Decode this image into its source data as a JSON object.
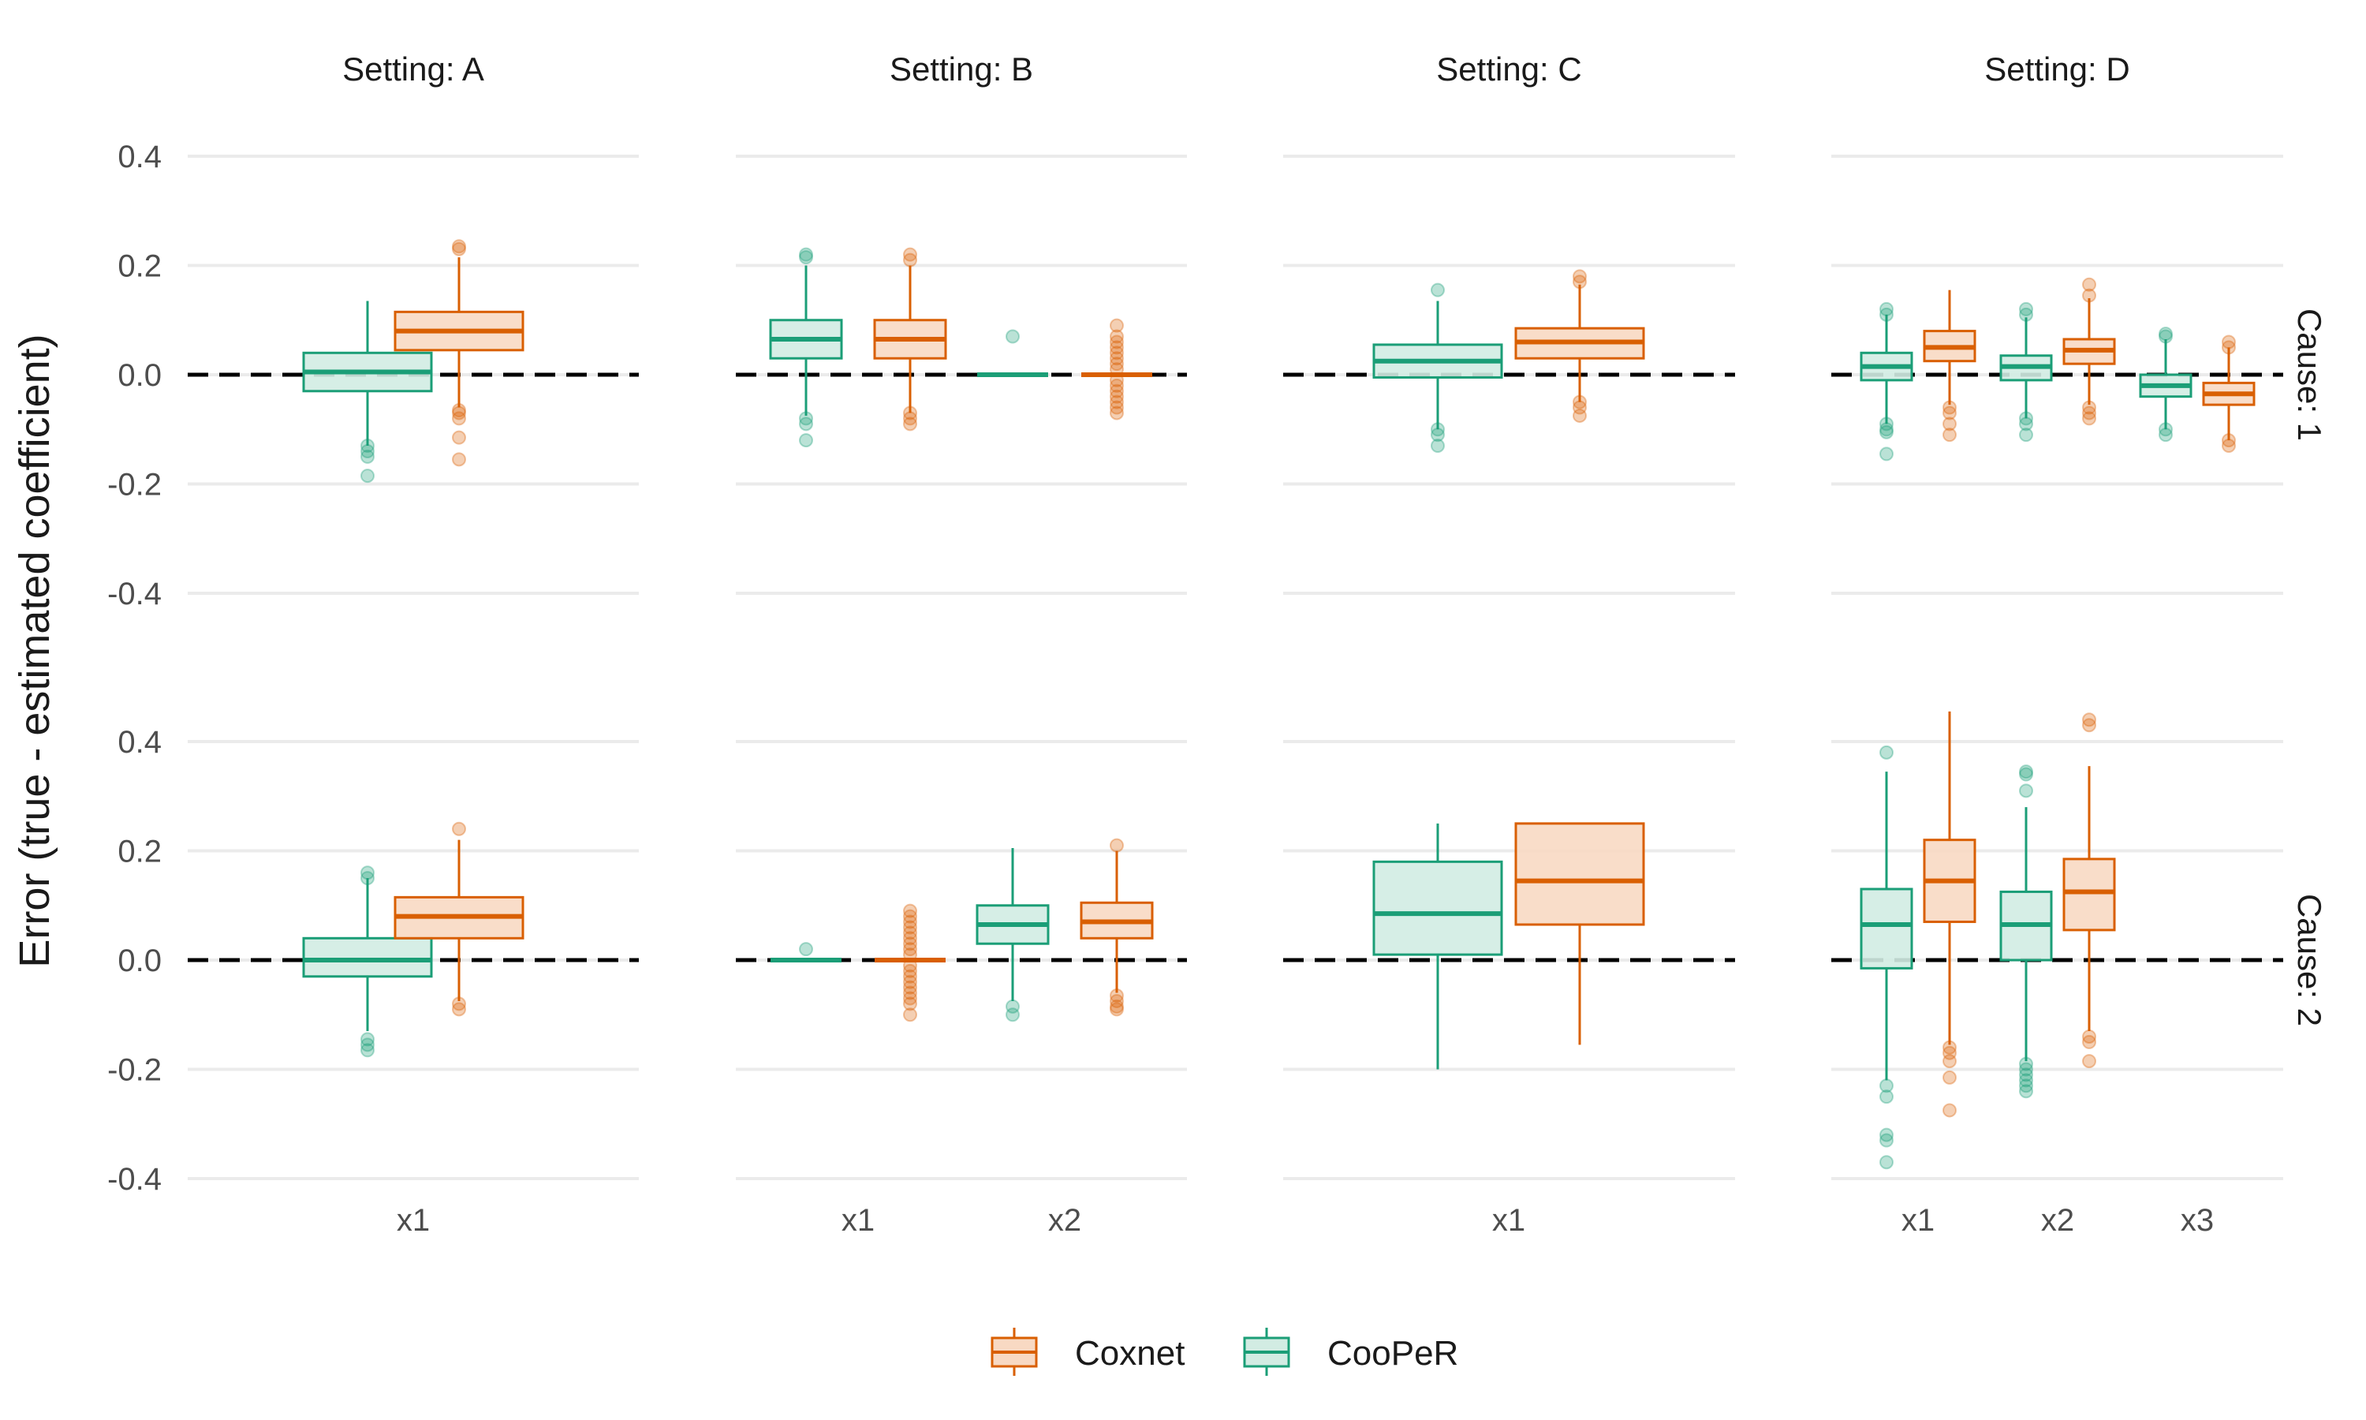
{
  "chart_data": {
    "type": "boxplot",
    "ylabel": "Error (true - estimated coefficient)",
    "ylim": [
      -0.4,
      0.4
    ],
    "yticks": [
      "0.4",
      "0.2",
      "0.0",
      "-0.2",
      "-0.4"
    ],
    "reference_line": 0.0,
    "legend": {
      "position": "bottom",
      "items": [
        {
          "name": "Coxnet",
          "key": "coxnet"
        },
        {
          "name": "CooPeR",
          "key": "cooper"
        }
      ]
    },
    "colors": {
      "cooper_stroke": "#1b9e77",
      "cooper_fill": "#d2ece3",
      "coxnet_stroke": "#d95f02",
      "coxnet_fill": "#f8d9c3",
      "grid": "#ebebeb",
      "refline": "#000000"
    },
    "settings": [
      "Setting: A",
      "Setting: B",
      "Setting: C",
      "Setting: D"
    ],
    "causes": [
      "Cause: 1",
      "Cause: 2"
    ],
    "x_categories": [
      [
        "x1"
      ],
      [
        "x1",
        "x2"
      ],
      [
        "x1"
      ],
      [
        "x1",
        "x2",
        "x3"
      ]
    ],
    "panels": [
      {
        "setting": 0,
        "cause": 0,
        "boxes": [
          {
            "cat": 0,
            "method": "cooper",
            "min": -0.13,
            "q1": -0.03,
            "median": 0.005,
            "q3": 0.04,
            "max": 0.135,
            "outliers": [
              -0.13,
              -0.14,
              -0.15,
              -0.185
            ]
          },
          {
            "cat": 0,
            "method": "coxnet",
            "min": -0.06,
            "q1": 0.045,
            "median": 0.08,
            "q3": 0.115,
            "max": 0.215,
            "outliers": [
              0.235,
              0.23,
              -0.065,
              -0.07,
              -0.08,
              -0.115,
              -0.155
            ]
          }
        ]
      },
      {
        "setting": 1,
        "cause": 0,
        "boxes": [
          {
            "cat": 0,
            "method": "cooper",
            "min": -0.075,
            "q1": 0.03,
            "median": 0.065,
            "q3": 0.1,
            "max": 0.2,
            "outliers": [
              0.22,
              0.215,
              -0.08,
              -0.09,
              -0.12
            ]
          },
          {
            "cat": 0,
            "method": "coxnet",
            "min": -0.07,
            "q1": 0.03,
            "median": 0.065,
            "q3": 0.1,
            "max": 0.2,
            "outliers": [
              0.22,
              0.21,
              -0.07,
              -0.08,
              -0.09
            ]
          },
          {
            "cat": 1,
            "method": "cooper",
            "min": 0.0,
            "q1": 0.0,
            "median": 0.0,
            "q3": 0.0,
            "max": 0.0,
            "outliers": [
              0.07
            ]
          },
          {
            "cat": 1,
            "method": "coxnet",
            "min": 0.0,
            "q1": 0.0,
            "median": 0.0,
            "q3": 0.0,
            "max": 0.0,
            "outliers": [
              0.09,
              0.07,
              0.06,
              0.05,
              0.04,
              0.03,
              0.02,
              0.01,
              -0.01,
              -0.02,
              -0.03,
              -0.04,
              -0.05,
              -0.06,
              -0.07
            ]
          }
        ]
      },
      {
        "setting": 2,
        "cause": 0,
        "boxes": [
          {
            "cat": 0,
            "method": "cooper",
            "min": -0.1,
            "q1": -0.005,
            "median": 0.025,
            "q3": 0.055,
            "max": 0.135,
            "outliers": [
              0.155,
              -0.1,
              -0.11,
              -0.13
            ]
          },
          {
            "cat": 0,
            "method": "coxnet",
            "min": -0.05,
            "q1": 0.03,
            "median": 0.06,
            "q3": 0.085,
            "max": 0.165,
            "outliers": [
              0.18,
              0.17,
              -0.05,
              -0.06,
              -0.075
            ]
          }
        ]
      },
      {
        "setting": 3,
        "cause": 0,
        "boxes": [
          {
            "cat": 0,
            "method": "cooper",
            "min": -0.09,
            "q1": -0.01,
            "median": 0.015,
            "q3": 0.04,
            "max": 0.11,
            "outliers": [
              0.12,
              0.11,
              -0.09,
              -0.1,
              -0.105,
              -0.145
            ]
          },
          {
            "cat": 0,
            "method": "coxnet",
            "min": -0.055,
            "q1": 0.025,
            "median": 0.05,
            "q3": 0.08,
            "max": 0.155,
            "outliers": [
              -0.06,
              -0.07,
              -0.09,
              -0.11
            ]
          },
          {
            "cat": 1,
            "method": "cooper",
            "min": -0.08,
            "q1": -0.01,
            "median": 0.015,
            "q3": 0.035,
            "max": 0.105,
            "outliers": [
              0.12,
              0.11,
              -0.08,
              -0.09,
              -0.11
            ]
          },
          {
            "cat": 1,
            "method": "coxnet",
            "min": -0.055,
            "q1": 0.02,
            "median": 0.045,
            "q3": 0.065,
            "max": 0.14,
            "outliers": [
              0.165,
              0.145,
              -0.06,
              -0.07,
              -0.08
            ]
          },
          {
            "cat": 2,
            "method": "cooper",
            "min": -0.1,
            "q1": -0.04,
            "median": -0.02,
            "q3": 0.0,
            "max": 0.065,
            "outliers": [
              0.075,
              0.07,
              -0.1,
              -0.11
            ]
          },
          {
            "cat": 2,
            "method": "coxnet",
            "min": -0.12,
            "q1": -0.055,
            "median": -0.035,
            "q3": -0.015,
            "max": 0.05,
            "outliers": [
              0.06,
              0.05,
              -0.12,
              -0.13
            ]
          }
        ]
      },
      {
        "setting": 0,
        "cause": 1,
        "boxes": [
          {
            "cat": 0,
            "method": "cooper",
            "min": -0.13,
            "q1": -0.03,
            "median": 0.0,
            "q3": 0.04,
            "max": 0.15,
            "outliers": [
              0.16,
              0.15,
              -0.145,
              -0.155,
              -0.165
            ]
          },
          {
            "cat": 0,
            "method": "coxnet",
            "min": -0.075,
            "q1": 0.04,
            "median": 0.08,
            "q3": 0.115,
            "max": 0.22,
            "outliers": [
              0.24,
              -0.08,
              -0.09
            ]
          }
        ]
      },
      {
        "setting": 1,
        "cause": 1,
        "boxes": [
          {
            "cat": 0,
            "method": "cooper",
            "min": 0.0,
            "q1": 0.0,
            "median": 0.0,
            "q3": 0.0,
            "max": 0.0,
            "outliers": [
              0.02
            ]
          },
          {
            "cat": 0,
            "method": "coxnet",
            "min": 0.0,
            "q1": 0.0,
            "median": 0.0,
            "q3": 0.0,
            "max": 0.0,
            "outliers": [
              0.09,
              0.08,
              0.07,
              0.06,
              0.05,
              0.04,
              0.03,
              0.02,
              0.01,
              -0.01,
              -0.02,
              -0.03,
              -0.04,
              -0.05,
              -0.06,
              -0.07,
              -0.08,
              -0.1
            ]
          },
          {
            "cat": 1,
            "method": "cooper",
            "min": -0.075,
            "q1": 0.03,
            "median": 0.065,
            "q3": 0.1,
            "max": 0.205,
            "outliers": [
              -0.085,
              -0.1
            ]
          },
          {
            "cat": 1,
            "method": "coxnet",
            "min": -0.06,
            "q1": 0.04,
            "median": 0.07,
            "q3": 0.105,
            "max": 0.2,
            "outliers": [
              0.21,
              -0.065,
              -0.075,
              -0.085,
              -0.09
            ]
          }
        ]
      },
      {
        "setting": 2,
        "cause": 1,
        "boxes": [
          {
            "cat": 0,
            "method": "cooper",
            "min": -0.2,
            "q1": 0.01,
            "median": 0.085,
            "q3": 0.18,
            "max": 0.25,
            "outliers": []
          },
          {
            "cat": 0,
            "method": "coxnet",
            "min": -0.155,
            "q1": 0.065,
            "median": 0.145,
            "q3": 0.25,
            "max": 0.25,
            "outliers": []
          }
        ]
      },
      {
        "setting": 3,
        "cause": 1,
        "boxes": [
          {
            "cat": 0,
            "method": "cooper",
            "min": -0.22,
            "q1": -0.015,
            "median": 0.065,
            "q3": 0.13,
            "max": 0.345,
            "outliers": [
              0.38,
              -0.23,
              -0.25,
              -0.32,
              -0.33,
              -0.37
            ]
          },
          {
            "cat": 0,
            "method": "coxnet",
            "min": -0.155,
            "q1": 0.07,
            "median": 0.145,
            "q3": 0.22,
            "max": 0.455,
            "outliers": [
              -0.16,
              -0.17,
              -0.185,
              -0.215,
              -0.275
            ]
          },
          {
            "cat": 1,
            "method": "cooper",
            "min": -0.185,
            "q1": 0.0,
            "median": 0.065,
            "q3": 0.125,
            "max": 0.28,
            "outliers": [
              0.345,
              0.34,
              0.31,
              -0.19,
              -0.2,
              -0.21,
              -0.22,
              -0.23,
              -0.24
            ]
          },
          {
            "cat": 1,
            "method": "coxnet",
            "min": -0.13,
            "q1": 0.055,
            "median": 0.125,
            "q3": 0.185,
            "max": 0.355,
            "outliers": [
              0.44,
              0.43,
              -0.14,
              -0.15,
              -0.185
            ]
          }
        ]
      }
    ]
  }
}
